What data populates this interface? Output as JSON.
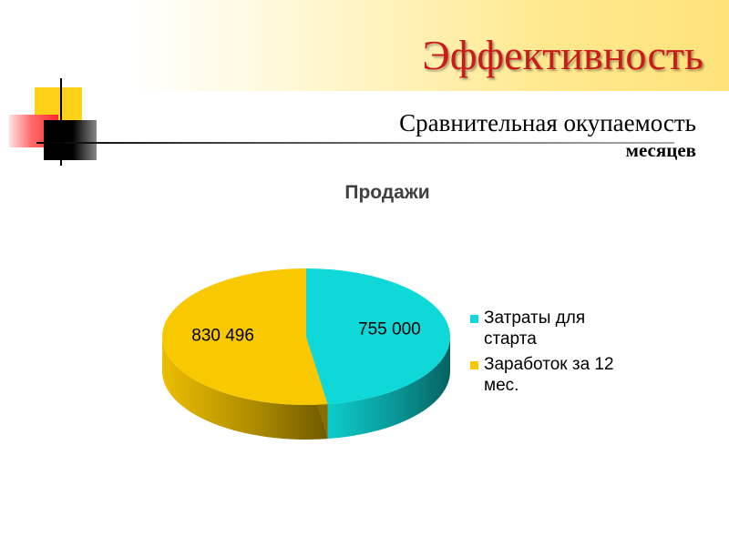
{
  "slide": {
    "title": "Эффективность",
    "subtitle_line1": "Сравнительная окупаемость",
    "subtitle_line2": "месяцев"
  },
  "colors": {
    "title": "#cc1a1a",
    "series_1": "#0ed8d8",
    "series_2": "#f8c800"
  },
  "chart_data": {
    "type": "pie",
    "title": "Продажи",
    "categories": [
      "Затраты для старта",
      "Заработок за 12 мес."
    ],
    "values": [
      755000,
      830496
    ],
    "value_labels": [
      "755 000",
      "830 496"
    ],
    "colors": [
      "#0ed8d8",
      "#f8c800"
    ],
    "legend_position": "right",
    "style": "3d"
  }
}
